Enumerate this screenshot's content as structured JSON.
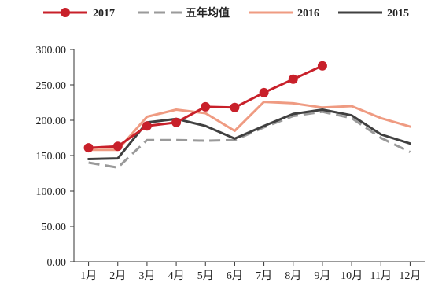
{
  "chart_data": {
    "type": "line",
    "title": "",
    "xlabel": "",
    "ylabel": "",
    "categories": [
      "1月",
      "2月",
      "3月",
      "4月",
      "5月",
      "6月",
      "7月",
      "8月",
      "9月",
      "10月",
      "11月",
      "12月"
    ],
    "ylim": [
      0,
      300
    ],
    "yticks": [
      "0.00",
      "50.00",
      "100.00",
      "150.00",
      "200.00",
      "250.00",
      "300.00"
    ],
    "grid": false,
    "legend_position": "top",
    "series": [
      {
        "name": "2017",
        "color": "#c8202a",
        "style": "solid-marker",
        "values": [
          161,
          163,
          192,
          197,
          219,
          218,
          239,
          258,
          277,
          null,
          null,
          null
        ]
      },
      {
        "name": "五年均值",
        "color": "#9a9a9a",
        "style": "dashed",
        "values": [
          140,
          133,
          172,
          172,
          171,
          172,
          190,
          206,
          212,
          203,
          175,
          155
        ]
      },
      {
        "name": "2016",
        "color": "#ef9b82",
        "style": "solid",
        "values": [
          158,
          158,
          205,
          215,
          210,
          185,
          226,
          224,
          218,
          220,
          203,
          191
        ]
      },
      {
        "name": "2015",
        "color": "#404040",
        "style": "solid",
        "values": [
          145,
          146,
          197,
          202,
          192,
          174,
          192,
          209,
          215,
          207,
          180,
          167
        ]
      }
    ]
  }
}
